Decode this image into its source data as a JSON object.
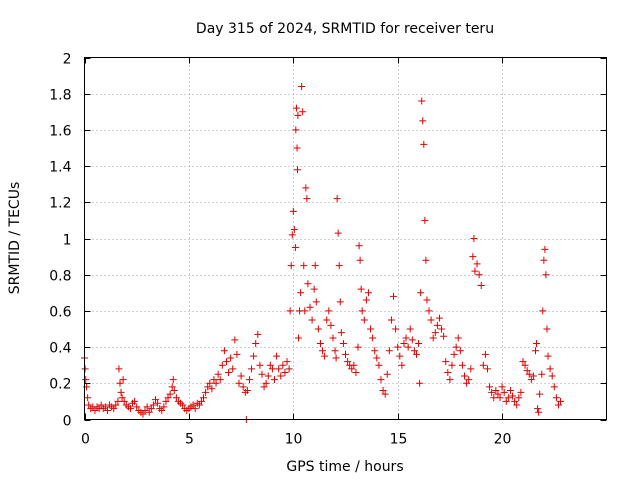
{
  "chart_data": {
    "type": "scatter",
    "title": "Day 315 of 2024, SRMTID for receiver teru",
    "xlabel": "GPS time / hours",
    "ylabel": "SRMTID / TECUs",
    "xlim": [
      0,
      25
    ],
    "ylim": [
      0,
      2
    ],
    "x_ticks": [
      0,
      5,
      10,
      15,
      20
    ],
    "x_tick_labels": [
      "0",
      "5",
      "10",
      "15",
      "20"
    ],
    "y_ticks": [
      0,
      0.2,
      0.4,
      0.6,
      0.8,
      1,
      1.2,
      1.4,
      1.6,
      1.8,
      2
    ],
    "y_tick_labels": [
      "0",
      "0.2",
      "0.4",
      "0.6",
      "0.8",
      "1",
      "1.2",
      "1.4",
      "1.6",
      "1.8",
      "2"
    ],
    "grid": true,
    "marker": "+",
    "color": "#e00000",
    "series": [
      {
        "name": "SRMTID",
        "points": [
          [
            0.0,
            0.34
          ],
          [
            0.03,
            0.28
          ],
          [
            0.06,
            0.22
          ],
          [
            0.1,
            0.18
          ],
          [
            0.15,
            0.12
          ],
          [
            0.2,
            0.08
          ],
          [
            0.3,
            0.06
          ],
          [
            0.4,
            0.07
          ],
          [
            0.5,
            0.05
          ],
          [
            0.6,
            0.07
          ],
          [
            0.7,
            0.06
          ],
          [
            0.8,
            0.08
          ],
          [
            0.9,
            0.06
          ],
          [
            1.0,
            0.07
          ],
          [
            1.1,
            0.05
          ],
          [
            1.2,
            0.08
          ],
          [
            1.3,
            0.07
          ],
          [
            1.4,
            0.06
          ],
          [
            1.5,
            0.08
          ],
          [
            1.6,
            0.1
          ],
          [
            1.65,
            0.28
          ],
          [
            1.7,
            0.2
          ],
          [
            1.75,
            0.15
          ],
          [
            1.8,
            0.12
          ],
          [
            1.85,
            0.22
          ],
          [
            1.9,
            0.1
          ],
          [
            2.0,
            0.08
          ],
          [
            2.1,
            0.07
          ],
          [
            2.2,
            0.06
          ],
          [
            2.3,
            0.09
          ],
          [
            2.4,
            0.1
          ],
          [
            2.5,
            0.07
          ],
          [
            2.6,
            0.05
          ],
          [
            2.7,
            0.04
          ],
          [
            2.8,
            0.03
          ],
          [
            2.9,
            0.05
          ],
          [
            3.0,
            0.07
          ],
          [
            3.1,
            0.04
          ],
          [
            3.2,
            0.06
          ],
          [
            3.3,
            0.08
          ],
          [
            3.4,
            0.11
          ],
          [
            3.5,
            0.09
          ],
          [
            3.6,
            0.06
          ],
          [
            3.7,
            0.05
          ],
          [
            3.8,
            0.07
          ],
          [
            3.9,
            0.1
          ],
          [
            4.0,
            0.12
          ],
          [
            4.1,
            0.14
          ],
          [
            4.2,
            0.18
          ],
          [
            4.25,
            0.22
          ],
          [
            4.3,
            0.16
          ],
          [
            4.4,
            0.12
          ],
          [
            4.5,
            0.1
          ],
          [
            4.6,
            0.09
          ],
          [
            4.7,
            0.08
          ],
          [
            4.8,
            0.06
          ],
          [
            4.9,
            0.05
          ],
          [
            5.0,
            0.06
          ],
          [
            5.1,
            0.07
          ],
          [
            5.2,
            0.08
          ],
          [
            5.3,
            0.06
          ],
          [
            5.4,
            0.09
          ],
          [
            5.5,
            0.08
          ],
          [
            5.6,
            0.1
          ],
          [
            5.7,
            0.12
          ],
          [
            5.8,
            0.15
          ],
          [
            5.9,
            0.18
          ],
          [
            6.0,
            0.2
          ],
          [
            6.1,
            0.17
          ],
          [
            6.2,
            0.22
          ],
          [
            6.3,
            0.2
          ],
          [
            6.4,
            0.25
          ],
          [
            6.5,
            0.22
          ],
          [
            6.6,
            0.3
          ],
          [
            6.7,
            0.38
          ],
          [
            6.8,
            0.32
          ],
          [
            6.9,
            0.26
          ],
          [
            7.0,
            0.34
          ],
          [
            7.1,
            0.28
          ],
          [
            7.2,
            0.44
          ],
          [
            7.3,
            0.36
          ],
          [
            7.4,
            0.2
          ],
          [
            7.5,
            0.24
          ],
          [
            7.6,
            0.18
          ],
          [
            7.7,
            0.15
          ],
          [
            7.75,
            0.0
          ],
          [
            7.8,
            0.16
          ],
          [
            7.9,
            0.22
          ],
          [
            8.0,
            0.28
          ],
          [
            8.1,
            0.35
          ],
          [
            8.2,
            0.42
          ],
          [
            8.3,
            0.47
          ],
          [
            8.4,
            0.3
          ],
          [
            8.5,
            0.25
          ],
          [
            8.6,
            0.18
          ],
          [
            8.7,
            0.2
          ],
          [
            8.8,
            0.24
          ],
          [
            8.9,
            0.3
          ],
          [
            9.0,
            0.28
          ],
          [
            9.1,
            0.22
          ],
          [
            9.2,
            0.35
          ],
          [
            9.3,
            0.28
          ],
          [
            9.4,
            0.24
          ],
          [
            9.5,
            0.3
          ],
          [
            9.6,
            0.26
          ],
          [
            9.7,
            0.32
          ],
          [
            9.8,
            0.28
          ],
          [
            9.85,
            0.6
          ],
          [
            9.9,
            0.85
          ],
          [
            9.95,
            1.02
          ],
          [
            10.0,
            1.15
          ],
          [
            10.05,
            1.05
          ],
          [
            10.1,
            0.95
          ],
          [
            10.12,
            1.6
          ],
          [
            10.15,
            1.72
          ],
          [
            10.18,
            1.5
          ],
          [
            10.2,
            1.38
          ],
          [
            10.22,
            1.68
          ],
          [
            10.25,
            0.45
          ],
          [
            10.3,
            0.6
          ],
          [
            10.35,
            0.7
          ],
          [
            10.4,
            1.84
          ],
          [
            10.45,
            1.7
          ],
          [
            10.5,
            0.85
          ],
          [
            10.55,
            0.6
          ],
          [
            10.6,
            1.28
          ],
          [
            10.65,
            1.22
          ],
          [
            10.7,
            0.75
          ],
          [
            10.8,
            0.62
          ],
          [
            10.9,
            0.55
          ],
          [
            11.0,
            0.72
          ],
          [
            11.05,
            0.85
          ],
          [
            11.1,
            0.65
          ],
          [
            11.2,
            0.5
          ],
          [
            11.3,
            0.42
          ],
          [
            11.4,
            0.38
          ],
          [
            11.5,
            0.35
          ],
          [
            11.6,
            0.55
          ],
          [
            11.7,
            0.6
          ],
          [
            11.8,
            0.52
          ],
          [
            11.9,
            0.45
          ],
          [
            12.0,
            0.38
          ],
          [
            12.05,
            0.34
          ],
          [
            12.1,
            1.22
          ],
          [
            12.15,
            1.03
          ],
          [
            12.2,
            0.85
          ],
          [
            12.25,
            0.65
          ],
          [
            12.3,
            0.48
          ],
          [
            12.4,
            0.42
          ],
          [
            12.5,
            0.36
          ],
          [
            12.6,
            0.32
          ],
          [
            12.7,
            0.3
          ],
          [
            12.8,
            0.28
          ],
          [
            12.9,
            0.3
          ],
          [
            13.0,
            0.26
          ],
          [
            13.1,
            0.4
          ],
          [
            13.15,
            0.96
          ],
          [
            13.2,
            0.88
          ],
          [
            13.25,
            0.72
          ],
          [
            13.3,
            0.6
          ],
          [
            13.4,
            0.55
          ],
          [
            13.5,
            0.66
          ],
          [
            13.6,
            0.7
          ],
          [
            13.7,
            0.5
          ],
          [
            13.8,
            0.45
          ],
          [
            13.9,
            0.38
          ],
          [
            14.0,
            0.34
          ],
          [
            14.1,
            0.3
          ],
          [
            14.2,
            0.22
          ],
          [
            14.3,
            0.16
          ],
          [
            14.4,
            0.14
          ],
          [
            14.5,
            0.25
          ],
          [
            14.6,
            0.38
          ],
          [
            14.7,
            0.55
          ],
          [
            14.8,
            0.68
          ],
          [
            14.9,
            0.5
          ],
          [
            15.0,
            0.4
          ],
          [
            15.1,
            0.35
          ],
          [
            15.2,
            0.3
          ],
          [
            15.3,
            0.42
          ],
          [
            15.4,
            0.45
          ],
          [
            15.5,
            0.4
          ],
          [
            15.6,
            0.5
          ],
          [
            15.7,
            0.44
          ],
          [
            15.8,
            0.38
          ],
          [
            15.9,
            0.36
          ],
          [
            16.0,
            0.42
          ],
          [
            16.05,
            0.2
          ],
          [
            16.1,
            0.7
          ],
          [
            16.15,
            1.76
          ],
          [
            16.2,
            1.65
          ],
          [
            16.25,
            1.52
          ],
          [
            16.3,
            1.1
          ],
          [
            16.35,
            0.88
          ],
          [
            16.4,
            0.66
          ],
          [
            16.5,
            0.6
          ],
          [
            16.6,
            0.55
          ],
          [
            16.7,
            0.45
          ],
          [
            16.8,
            0.48
          ],
          [
            16.9,
            0.52
          ],
          [
            17.0,
            0.56
          ],
          [
            17.1,
            0.5
          ],
          [
            17.2,
            0.46
          ],
          [
            17.3,
            0.32
          ],
          [
            17.4,
            0.26
          ],
          [
            17.5,
            0.22
          ],
          [
            17.6,
            0.3
          ],
          [
            17.7,
            0.36
          ],
          [
            17.8,
            0.4
          ],
          [
            17.9,
            0.45
          ],
          [
            18.0,
            0.38
          ],
          [
            18.1,
            0.3
          ],
          [
            18.2,
            0.24
          ],
          [
            18.3,
            0.2
          ],
          [
            18.4,
            0.22
          ],
          [
            18.5,
            0.28
          ],
          [
            18.6,
            0.9
          ],
          [
            18.65,
            1.0
          ],
          [
            18.7,
            0.82
          ],
          [
            18.8,
            0.86
          ],
          [
            18.9,
            0.8
          ],
          [
            19.0,
            0.74
          ],
          [
            19.1,
            0.3
          ],
          [
            19.2,
            0.36
          ],
          [
            19.3,
            0.28
          ],
          [
            19.4,
            0.18
          ],
          [
            19.5,
            0.15
          ],
          [
            19.6,
            0.12
          ],
          [
            19.7,
            0.16
          ],
          [
            19.8,
            0.14
          ],
          [
            19.9,
            0.12
          ],
          [
            20.0,
            0.18
          ],
          [
            20.1,
            0.15
          ],
          [
            20.2,
            0.1
          ],
          [
            20.3,
            0.12
          ],
          [
            20.4,
            0.16
          ],
          [
            20.5,
            0.13
          ],
          [
            20.6,
            0.1
          ],
          [
            20.7,
            0.08
          ],
          [
            20.8,
            0.12
          ],
          [
            20.9,
            0.15
          ],
          [
            21.0,
            0.32
          ],
          [
            21.1,
            0.3
          ],
          [
            21.2,
            0.27
          ],
          [
            21.3,
            0.25
          ],
          [
            21.4,
            0.22
          ],
          [
            21.5,
            0.24
          ],
          [
            21.6,
            0.38
          ],
          [
            21.65,
            0.42
          ],
          [
            21.7,
            0.06
          ],
          [
            21.75,
            0.04
          ],
          [
            21.8,
            0.14
          ],
          [
            21.9,
            0.25
          ],
          [
            21.95,
            0.6
          ],
          [
            22.0,
            0.88
          ],
          [
            22.05,
            0.94
          ],
          [
            22.1,
            0.8
          ],
          [
            22.15,
            0.5
          ],
          [
            22.2,
            0.35
          ],
          [
            22.3,
            0.28
          ],
          [
            22.4,
            0.24
          ],
          [
            22.5,
            0.18
          ],
          [
            22.6,
            0.12
          ],
          [
            22.7,
            0.08
          ],
          [
            22.8,
            0.1
          ]
        ]
      }
    ]
  }
}
